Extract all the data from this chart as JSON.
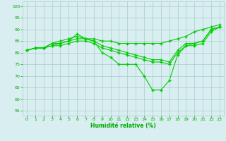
{
  "line_color": "#00cc00",
  "marker": "+",
  "markersize": 3,
  "markeredgewidth": 1,
  "linewidth": 0.8,
  "background_color": "#d8eef0",
  "grid_color": "#aacccc",
  "tick_color": "#00aa00",
  "xlabel": "Humidité relative (%)",
  "xlabel_color": "#00aa00",
  "xlabel_fontsize": 5.5,
  "tick_fontsize": 4.5,
  "ylabel_ticks": [
    55,
    60,
    65,
    70,
    75,
    80,
    85,
    90,
    95,
    100
  ],
  "xlim": [
    -0.5,
    23.5
  ],
  "ylim": [
    53,
    102
  ],
  "xticks": [
    0,
    1,
    2,
    3,
    4,
    5,
    6,
    7,
    8,
    9,
    10,
    11,
    12,
    13,
    14,
    15,
    16,
    17,
    18,
    19,
    20,
    21,
    22,
    23
  ],
  "series": [
    {
      "x": [
        0,
        1,
        2,
        3,
        4,
        5,
        6,
        7,
        8,
        9,
        10,
        11,
        12,
        13,
        14,
        15,
        16,
        17,
        18,
        19,
        20,
        21,
        22,
        23
      ],
      "y": [
        81,
        82,
        82,
        84,
        85,
        86,
        87,
        86,
        86,
        85,
        85,
        84,
        84,
        84,
        84,
        84,
        84,
        85,
        86,
        87,
        89,
        90,
        91,
        92
      ]
    },
    {
      "x": [
        0,
        1,
        2,
        3,
        4,
        5,
        6,
        7,
        8,
        9,
        10,
        11,
        12,
        13,
        14,
        15,
        16,
        17,
        18,
        19,
        20,
        21,
        22,
        23
      ],
      "y": [
        81,
        82,
        82,
        83,
        84,
        85,
        86,
        86,
        85,
        83,
        82,
        81,
        80,
        79,
        78,
        77,
        77,
        76,
        81,
        84,
        84,
        85,
        90,
        91
      ]
    },
    {
      "x": [
        0,
        1,
        2,
        3,
        4,
        5,
        6,
        7,
        8,
        9,
        10,
        11,
        12,
        13,
        14,
        15,
        16,
        17,
        18,
        19,
        20,
        21,
        22,
        23
      ],
      "y": [
        81,
        82,
        82,
        83,
        83,
        84,
        85,
        85,
        84,
        82,
        81,
        80,
        79,
        78,
        77,
        76,
        76,
        75,
        80,
        83,
        83,
        84,
        89,
        91
      ]
    },
    {
      "x": [
        0,
        1,
        2,
        3,
        4,
        5,
        6,
        7,
        8,
        9,
        10,
        11,
        12,
        13,
        14,
        15,
        16,
        17,
        18,
        19,
        20,
        21,
        22,
        23
      ],
      "y": [
        81,
        82,
        82,
        84,
        84,
        85,
        88,
        86,
        85,
        80,
        78,
        75,
        75,
        75,
        70,
        64,
        64,
        68,
        79,
        83,
        84,
        85,
        90,
        91
      ]
    }
  ]
}
